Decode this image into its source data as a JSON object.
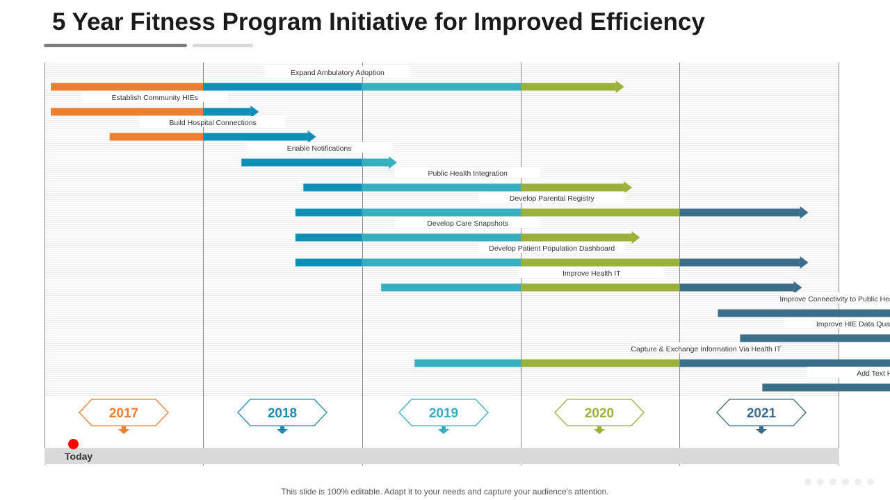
{
  "title": "5 Year Fitness Program Initiative for Improved Efficiency",
  "today_label": "Today",
  "footer_text": "This slide is 100% editable. Adapt it to your needs and capture your audience's attention.",
  "colors": {
    "orange": "#ed7d31",
    "blue": "#0f8fb5",
    "teal": "#36b0bf",
    "green": "#9bb13b",
    "navy": "#3c6e8a",
    "today": "#ff0000"
  },
  "years": [
    {
      "label": "2017",
      "color": "#ed7d31"
    },
    {
      "label": "2018",
      "color": "#1f8ab0"
    },
    {
      "label": "2019",
      "color": "#36aebf"
    },
    {
      "label": "2020",
      "color": "#9bb13b"
    },
    {
      "label": "2021",
      "color": "#3a6b89"
    }
  ],
  "tasks": [
    {
      "label": "Expand Ambulatory Adoption",
      "start": 2016.04,
      "end": 2019.65
    },
    {
      "label": "Establish Community HIEs",
      "start": 2016.04,
      "end": 2017.35
    },
    {
      "label": "Build Hospital Connections",
      "start": 2016.41,
      "end": 2017.71
    },
    {
      "label": "Enable Notifications",
      "start": 2017.24,
      "end": 2018.22
    },
    {
      "label": "Public Health Integration",
      "start": 2017.63,
      "end": 2019.7
    },
    {
      "label": "Develop Parental Registry",
      "start": 2017.58,
      "end": 2020.81
    },
    {
      "label": "Develop Care Snapshots",
      "start": 2017.58,
      "end": 2019.75
    },
    {
      "label": "Develop Patient Population Dashboard",
      "start": 2017.58,
      "end": 2020.81
    },
    {
      "label": "Improve Health IT",
      "start": 2018.12,
      "end": 2020.77
    },
    {
      "label": "Improve Connectivity to Public Health Registries",
      "start": 2020.24,
      "end": 2022.0
    },
    {
      "label": "Improve HIE Data Quality",
      "start": 2020.38,
      "end": 2021.86
    },
    {
      "label": "Capture & Exchange Information Via Health IT",
      "start": 2018.33,
      "end": 2022.0
    },
    {
      "label": "Add Text Here",
      "start": 2020.52,
      "end": 2022.0
    }
  ]
}
